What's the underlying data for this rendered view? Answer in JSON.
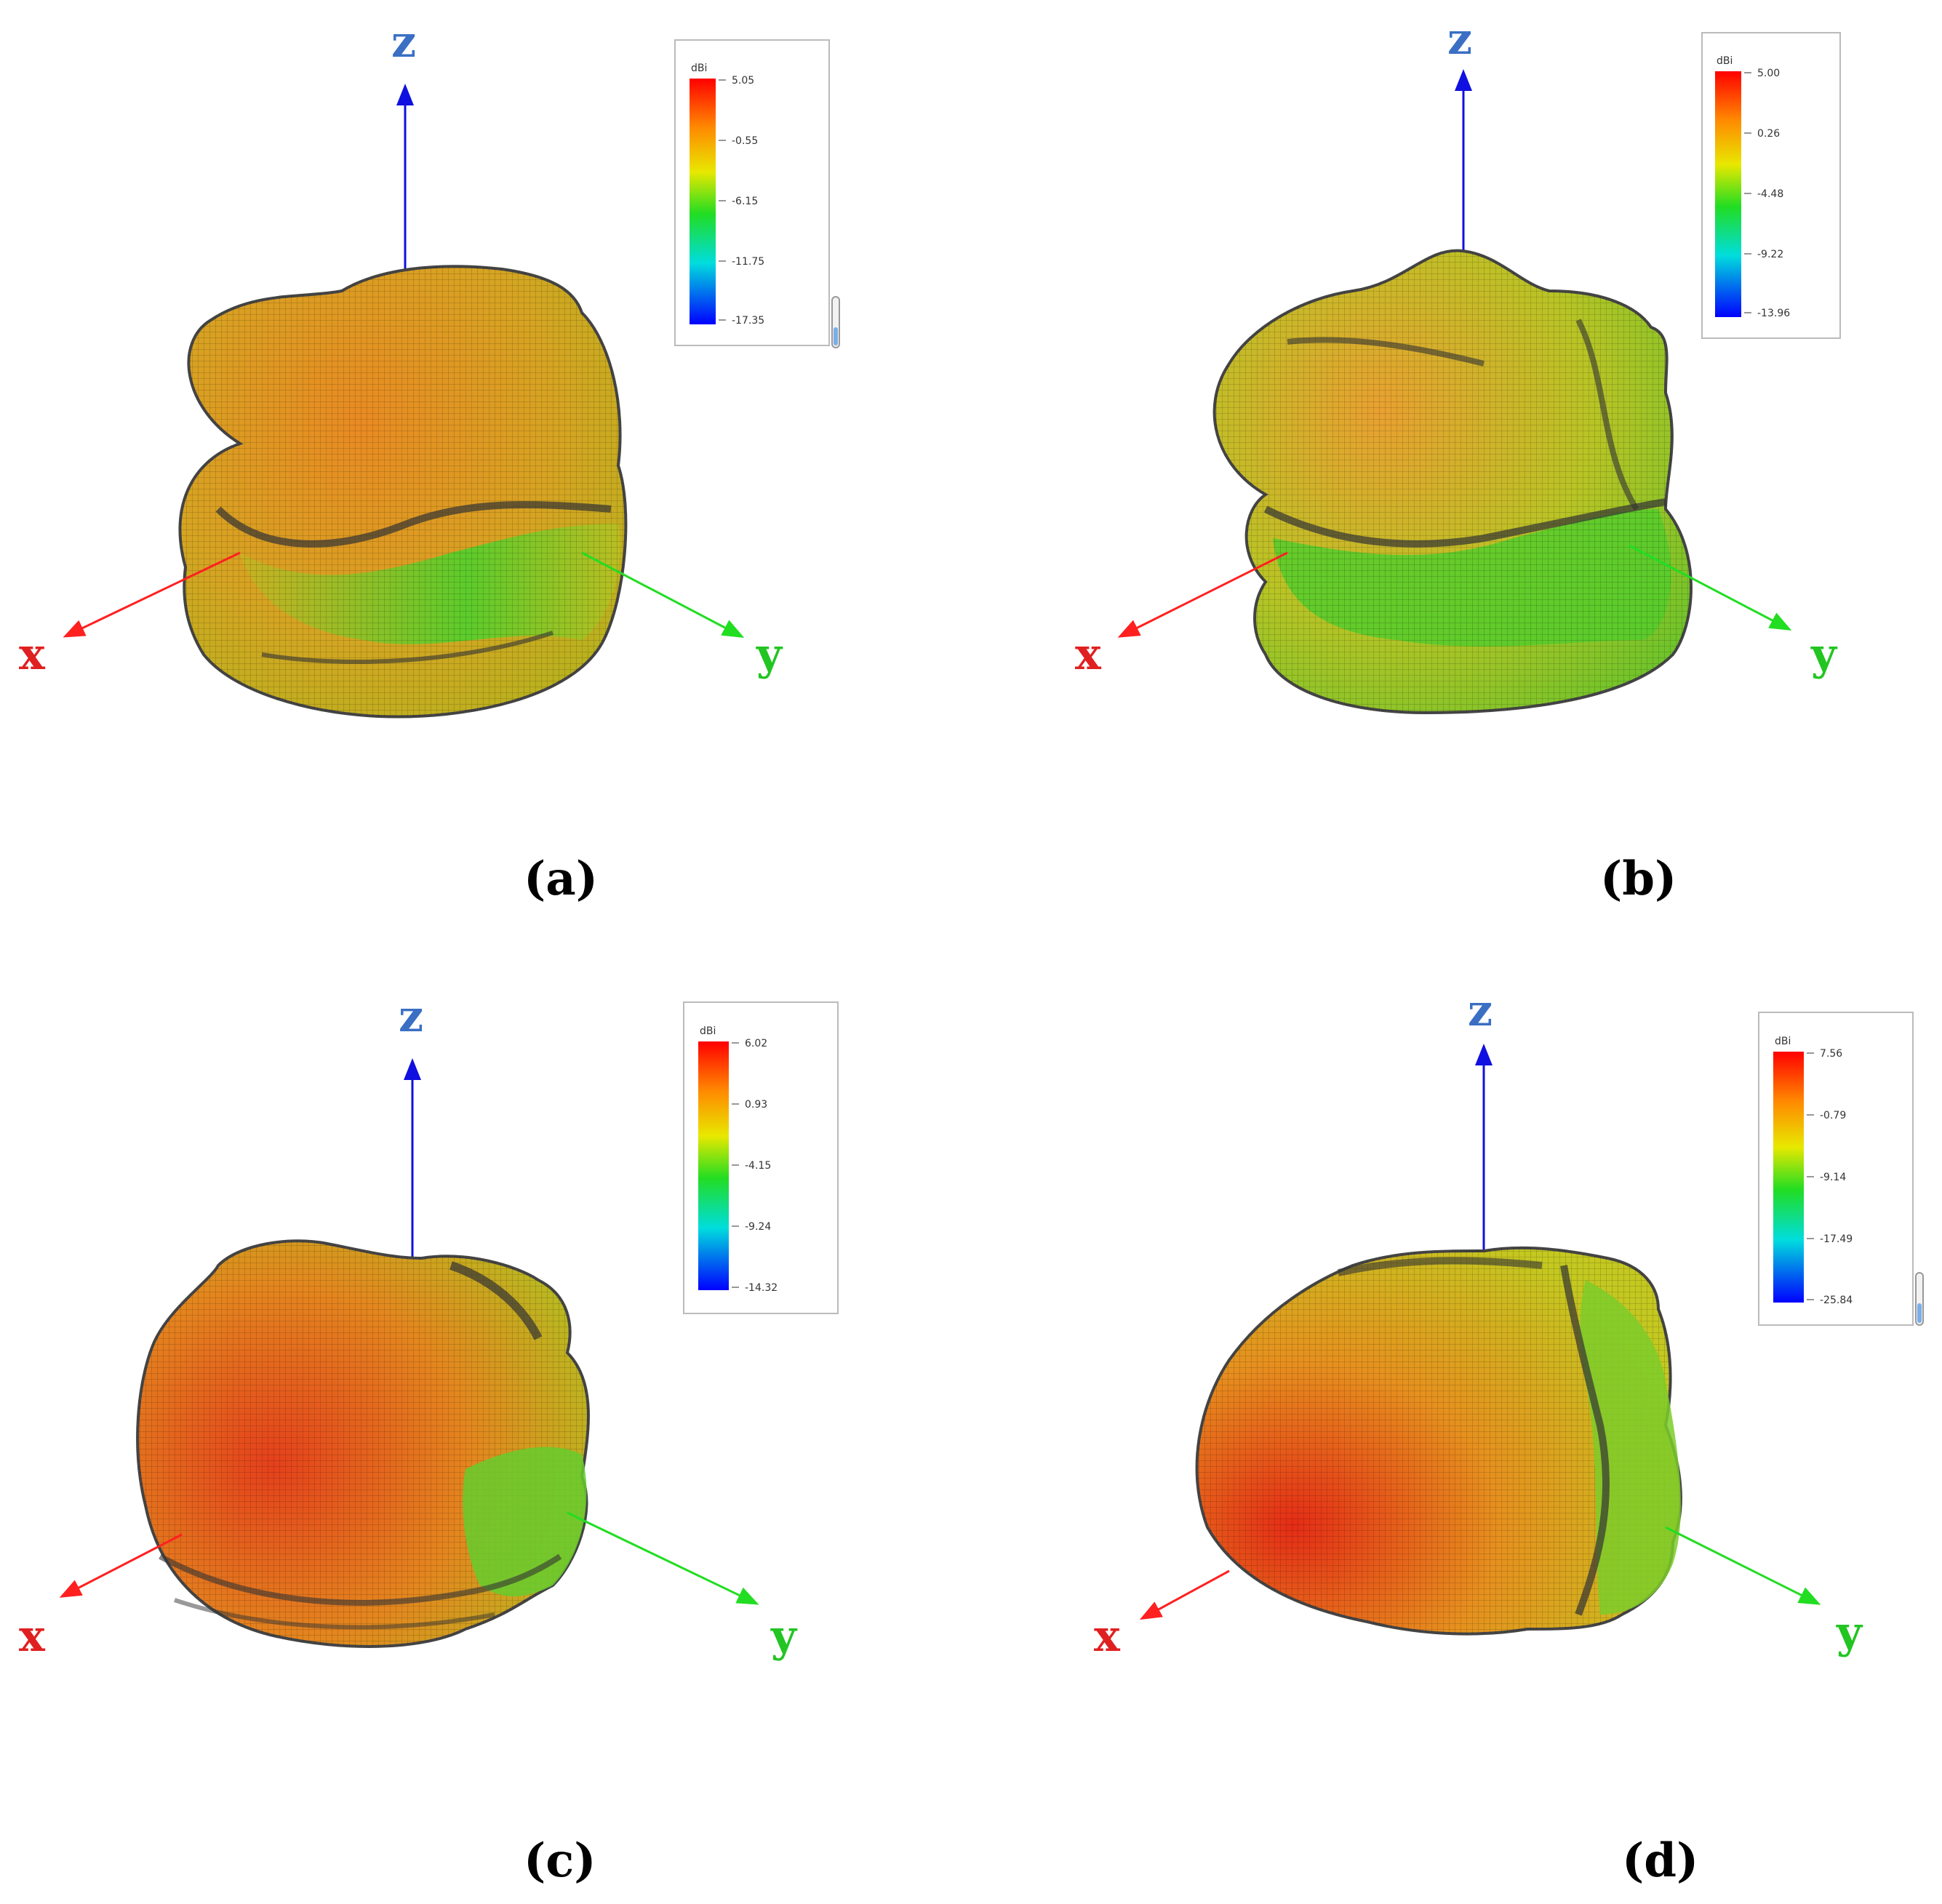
{
  "panels": [
    {
      "id": "a",
      "caption": "(a)",
      "axes": {
        "z": "z",
        "x": "x",
        "y": "y"
      },
      "legend": {
        "unit": "dBi",
        "ticks": [
          "5.05",
          "-0.55",
          "-6.15",
          "-11.75",
          "-17.35"
        ]
      }
    },
    {
      "id": "b",
      "caption": "(b)",
      "axes": {
        "z": "z",
        "x": "x",
        "y": "y"
      },
      "legend": {
        "unit": "dBi",
        "ticks": [
          "5.00",
          "0.26",
          "-4.48",
          "-9.22",
          "-13.96"
        ]
      }
    },
    {
      "id": "c",
      "caption": "(c)",
      "axes": {
        "z": "z",
        "x": "x",
        "y": "y"
      },
      "legend": {
        "unit": "dBi",
        "ticks": [
          "6.02",
          "0.93",
          "-4.15",
          "-9.24",
          "-14.32"
        ]
      }
    },
    {
      "id": "d",
      "caption": "(d)",
      "axes": {
        "z": "z",
        "x": "x",
        "y": "y"
      },
      "legend": {
        "unit": "dBi",
        "ticks": [
          "7.56",
          "-0.79",
          "-9.14",
          "-17.49",
          "-25.84"
        ]
      }
    }
  ],
  "colors": {
    "x_axis": "#ff2020",
    "y_axis": "#22dd22",
    "z_axis": "#1010e0",
    "z_label": "#3a6fc4",
    "x_label": "#e02020",
    "y_label": "#22c522"
  }
}
